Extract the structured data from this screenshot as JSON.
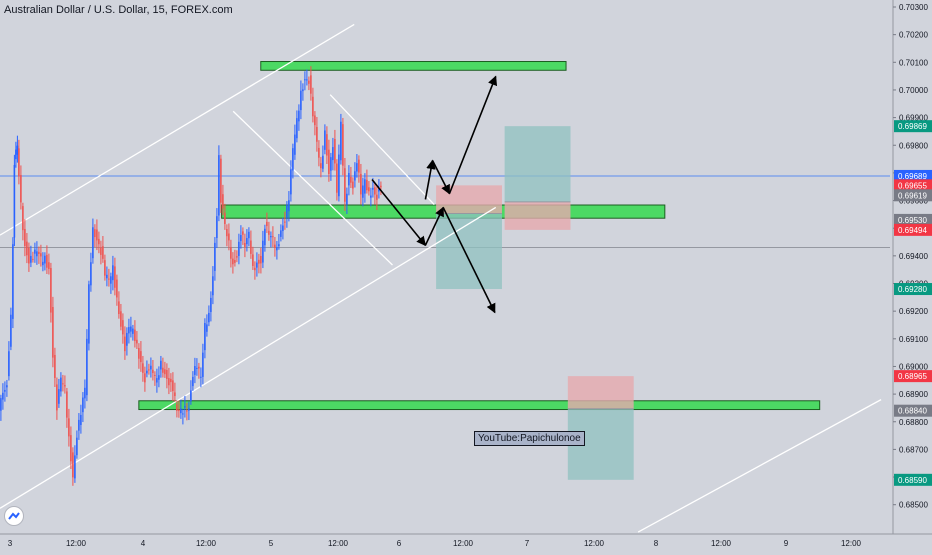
{
  "header": {
    "title": "Australian Dollar / U.S. Dollar, 15, FOREX.com"
  },
  "watermark": {
    "text": "YouTube:Papichulonoe"
  },
  "colors": {
    "background": "#d1d4dc",
    "up_candle": "#2962ff",
    "down_candle": "#ef5350",
    "zone_fill": "#4cd964",
    "zone_border": "#1b5e20",
    "channel_line": "#ffffff",
    "horizontal_line": "#5b8def",
    "profit_box": "#8fc1c0",
    "loss_box": "#e6a9ae",
    "arrow": "#000000",
    "price_tag_green": "#089981",
    "price_tag_red": "#f23645",
    "price_tag_blue": "#2962ff",
    "price_tag_gray": "#787b86"
  },
  "chart_data": {
    "type": "candlestick",
    "title": "Australian Dollar / U.S. Dollar, 15, FOREX.com",
    "ylim": [
      0.6845,
      0.7031
    ],
    "y_ticks": [
      "0.70300",
      "0.70200",
      "0.70100",
      "0.70000",
      "0.69900",
      "0.69800",
      "0.69700",
      "0.69600",
      "0.69500",
      "0.69400",
      "0.69300",
      "0.69200",
      "0.69100",
      "0.69000",
      "0.68900",
      "0.68800",
      "0.68700",
      "0.68600",
      "0.68500"
    ],
    "x_ticks": [
      "3",
      "12:00",
      "4",
      "12:00",
      "5",
      "12:00",
      "6",
      "12:00",
      "7",
      "12:00",
      "8",
      "12:00",
      "9",
      "12:00"
    ],
    "price_tags": [
      {
        "label": "0.69869",
        "value": 0.69869,
        "color": "green"
      },
      {
        "label": "0.69689",
        "value": 0.69689,
        "color": "blue"
      },
      {
        "label": "0.69655",
        "value": 0.69655,
        "color": "red"
      },
      {
        "label": "0.69619",
        "value": 0.69619,
        "color": "gray"
      },
      {
        "label": "0.69530",
        "value": 0.6953,
        "color": "gray"
      },
      {
        "label": "0.69494",
        "value": 0.69494,
        "color": "red"
      },
      {
        "label": "0.69280",
        "value": 0.6928,
        "color": "green"
      },
      {
        "label": "0.68965",
        "value": 0.68965,
        "color": "red"
      },
      {
        "label": "0.68840",
        "value": 0.6884,
        "color": "gray"
      },
      {
        "label": "0.68590",
        "value": 0.6859,
        "color": "green"
      }
    ],
    "horizontal_lines": [
      0.69689,
      0.6943
    ],
    "zones": [
      {
        "name": "top-resistance",
        "low": 0.70082,
        "high": 0.70092,
        "x_start": 0.293,
        "x_end": 0.636
      },
      {
        "name": "middle-support",
        "low": 0.69547,
        "high": 0.69573,
        "x_start": 0.249,
        "x_end": 0.747
      },
      {
        "name": "lower-support",
        "low": 0.68855,
        "high": 0.68865,
        "x_start": 0.156,
        "x_end": 0.921
      }
    ],
    "position_boxes": [
      {
        "name": "long-position",
        "x_start": 0.567,
        "x_end": 0.641,
        "stop": 0.69494,
        "entry": 0.69595,
        "target": 0.69869
      },
      {
        "name": "short-position-1",
        "x_start": 0.49,
        "x_end": 0.564,
        "stop": 0.69655,
        "entry": 0.69553,
        "target": 0.6928
      },
      {
        "name": "short-position-2",
        "x_start": 0.638,
        "x_end": 0.712,
        "stop": 0.68965,
        "entry": 0.68847,
        "target": 0.6859
      }
    ],
    "channel_lines": [
      {
        "x1": 0.0,
        "y1": 0.69475,
        "x2": 0.398,
        "y2": 0.70237
      },
      {
        "x1": 0.0,
        "y1": 0.68487,
        "x2": 0.557,
        "y2": 0.69575
      },
      {
        "x1": 0.717,
        "y1": 0.68401,
        "x2": 0.99,
        "y2": 0.6888
      },
      {
        "x1": 0.262,
        "y1": 0.69923,
        "x2": 0.441,
        "y2": 0.69367
      },
      {
        "x1": 0.371,
        "y1": 0.69983,
        "x2": 0.488,
        "y2": 0.69585
      }
    ],
    "arrows": [
      {
        "x1": 0.418,
        "y1": 0.69676,
        "x2": 0.478,
        "y2": 0.69438
      },
      {
        "x1": 0.478,
        "y1": 0.69438,
        "x2": 0.498,
        "y2": 0.69575
      },
      {
        "x1": 0.498,
        "y1": 0.69575,
        "x2": 0.556,
        "y2": 0.69195
      },
      {
        "x1": 0.478,
        "y1": 0.69604,
        "x2": 0.486,
        "y2": 0.69745
      },
      {
        "x1": 0.486,
        "y1": 0.69745,
        "x2": 0.505,
        "y2": 0.69625
      },
      {
        "x1": 0.505,
        "y1": 0.69625,
        "x2": 0.557,
        "y2": 0.70049
      }
    ],
    "price_path": [
      [
        0,
        0.6884
      ],
      [
        8,
        0.6895
      ],
      [
        12,
        0.6918
      ],
      [
        15,
        0.6974
      ],
      [
        18,
        0.698
      ],
      [
        22,
        0.6958
      ],
      [
        26,
        0.6944
      ],
      [
        30,
        0.6939
      ],
      [
        34,
        0.694
      ],
      [
        38,
        0.6941
      ],
      [
        42,
        0.6938
      ],
      [
        46,
        0.6939
      ],
      [
        50,
        0.6936
      ],
      [
        54,
        0.6905
      ],
      [
        58,
        0.6885
      ],
      [
        62,
        0.6895
      ],
      [
        66,
        0.6891
      ],
      [
        70,
        0.6874
      ],
      [
        74,
        0.6861
      ],
      [
        78,
        0.6876
      ],
      [
        82,
        0.6883
      ],
      [
        86,
        0.6891
      ],
      [
        90,
        0.6928
      ],
      [
        94,
        0.695
      ],
      [
        98,
        0.6947
      ],
      [
        102,
        0.6942
      ],
      [
        106,
        0.6933
      ],
      [
        110,
        0.693
      ],
      [
        114,
        0.6935
      ],
      [
        118,
        0.6925
      ],
      [
        122,
        0.6916
      ],
      [
        126,
        0.6907
      ],
      [
        130,
        0.6914
      ],
      [
        134,
        0.6912
      ],
      [
        138,
        0.6907
      ],
      [
        142,
        0.6902
      ],
      [
        146,
        0.6896
      ],
      [
        150,
        0.69
      ],
      [
        154,
        0.6897
      ],
      [
        158,
        0.6894
      ],
      [
        162,
        0.6901
      ],
      [
        166,
        0.6898
      ],
      [
        170,
        0.6895
      ],
      [
        174,
        0.6892
      ],
      [
        178,
        0.6883
      ],
      [
        182,
        0.6883
      ],
      [
        186,
        0.6885
      ],
      [
        190,
        0.6886
      ],
      [
        194,
        0.6898
      ],
      [
        198,
        0.69
      ],
      [
        202,
        0.6895
      ],
      [
        206,
        0.6914
      ],
      [
        210,
        0.6919
      ],
      [
        214,
        0.6934
      ],
      [
        218,
        0.6956
      ],
      [
        220,
        0.6975
      ],
      [
        222,
        0.6961
      ],
      [
        226,
        0.695
      ],
      [
        230,
        0.6944
      ],
      [
        234,
        0.6937
      ],
      [
        238,
        0.6941
      ],
      [
        242,
        0.6949
      ],
      [
        246,
        0.6943
      ],
      [
        250,
        0.6947
      ],
      [
        254,
        0.6935
      ],
      [
        258,
        0.6938
      ],
      [
        262,
        0.6939
      ],
      [
        266,
        0.6951
      ],
      [
        270,
        0.6947
      ],
      [
        274,
        0.6945
      ],
      [
        278,
        0.6942
      ],
      [
        282,
        0.695
      ],
      [
        286,
        0.6954
      ],
      [
        290,
        0.6961
      ],
      [
        294,
        0.6978
      ],
      [
        298,
        0.6988
      ],
      [
        302,
        0.6999
      ],
      [
        306,
        0.7005
      ],
      [
        310,
        0.7004
      ],
      [
        314,
        0.6991
      ],
      [
        318,
        0.698
      ],
      [
        322,
        0.697
      ],
      [
        326,
        0.6985
      ],
      [
        330,
        0.6971
      ],
      [
        334,
        0.6981
      ],
      [
        338,
        0.6963
      ],
      [
        342,
        0.6987
      ],
      [
        346,
        0.6958
      ],
      [
        350,
        0.697
      ],
      [
        354,
        0.6966
      ],
      [
        358,
        0.6975
      ],
      [
        362,
        0.6962
      ],
      [
        366,
        0.6966
      ],
      [
        370,
        0.6962
      ],
      [
        374,
        0.6965
      ],
      [
        378,
        0.6962
      ],
      [
        382,
        0.6966
      ]
    ]
  }
}
